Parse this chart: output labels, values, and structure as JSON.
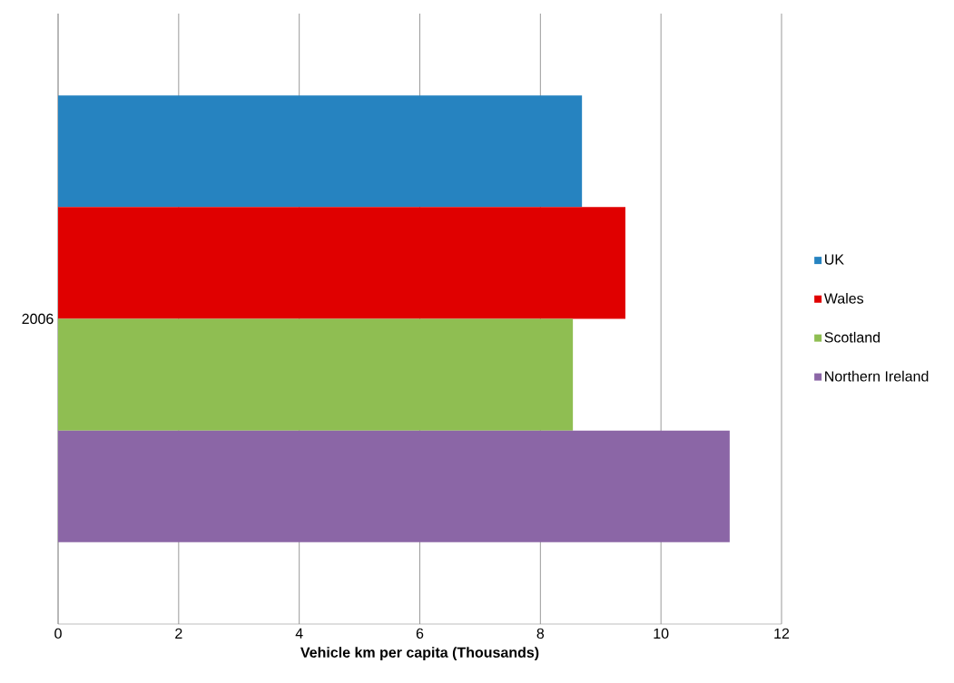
{
  "chart_data": {
    "type": "bar",
    "orientation": "horizontal",
    "xlabel": "Vehicle km per capita (Thousands)",
    "categories": [
      "2006"
    ],
    "series": [
      {
        "name": "UK",
        "color": "#2683c0",
        "values": [
          8.69
        ]
      },
      {
        "name": "Wales",
        "color": "#e00000",
        "values": [
          9.41
        ]
      },
      {
        "name": "Scotland",
        "color": "#8fbe52",
        "values": [
          8.54
        ]
      },
      {
        "name": "Northern Ireland",
        "color": "#8b66a6",
        "values": [
          11.14
        ]
      }
    ],
    "xlim": [
      0,
      12
    ],
    "xticks": [
      0,
      2,
      4,
      6,
      8,
      10,
      12
    ],
    "grid": "x",
    "legend": "right"
  }
}
